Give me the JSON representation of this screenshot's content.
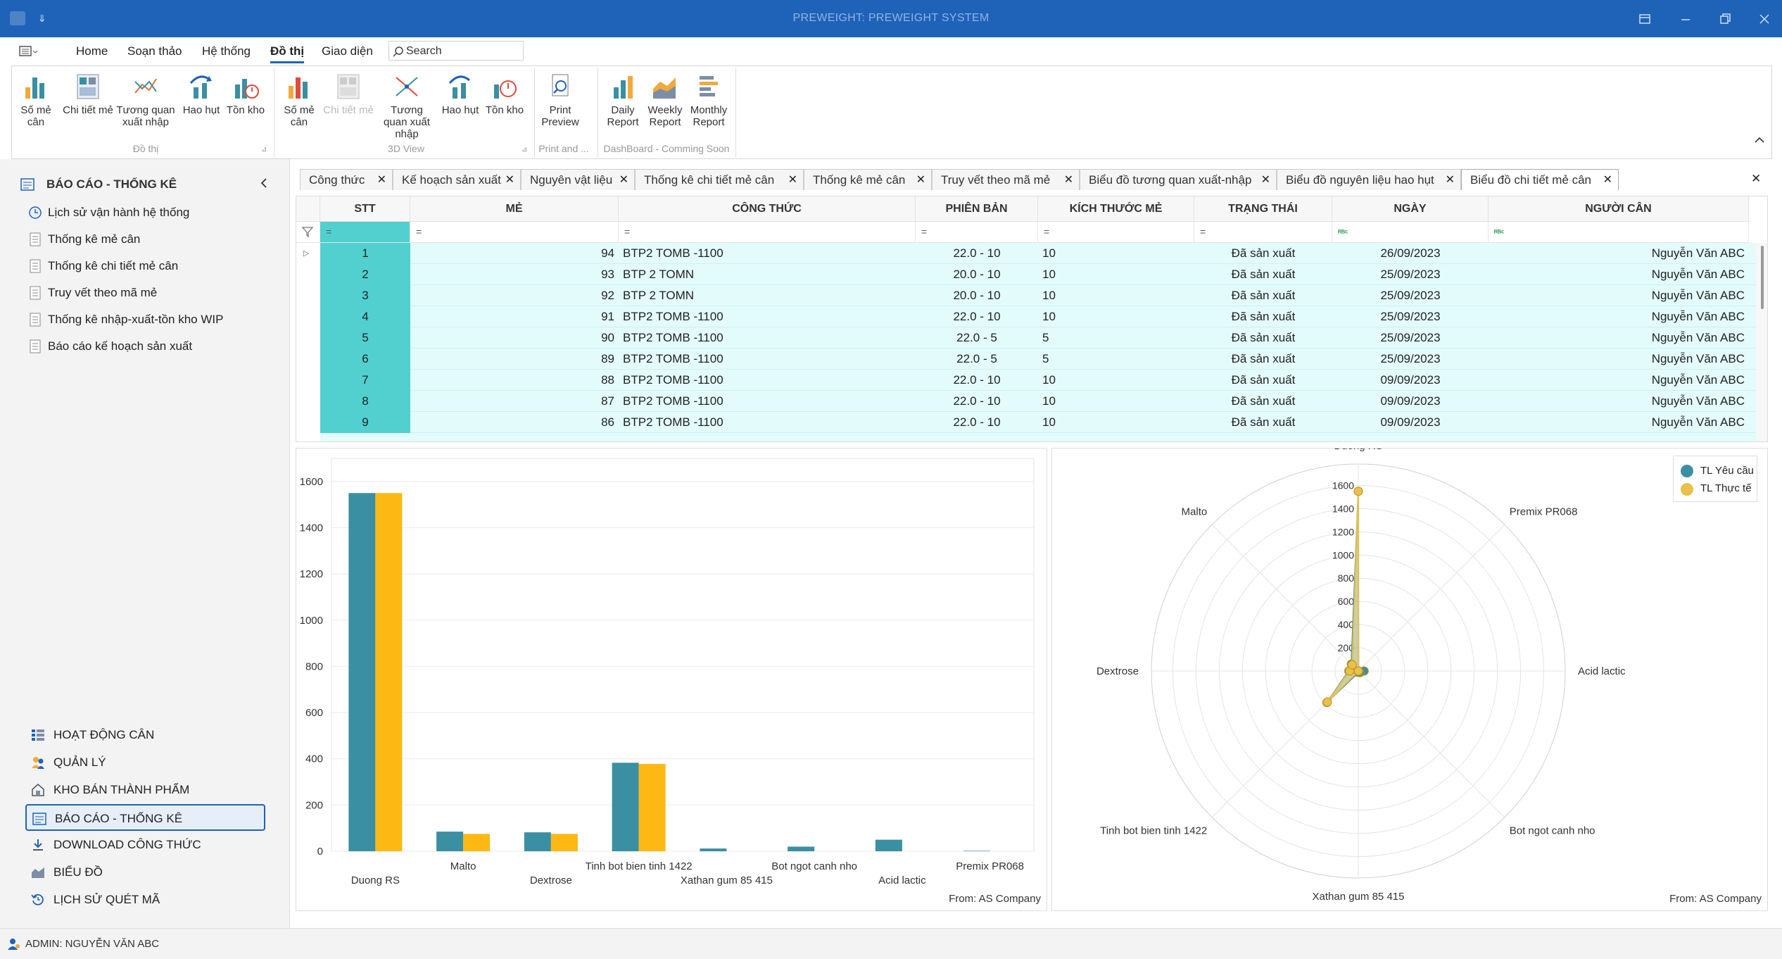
{
  "window": {
    "title": "PREWEIGHT: PREWEIGHT SYSTEM"
  },
  "menu": {
    "items": [
      "Home",
      "Soạn thảo",
      "Hệ thống",
      "Đồ thị",
      "Giao diện"
    ],
    "active": "Đồ thị",
    "search_placeholder": "Search"
  },
  "ribbon": {
    "buttons": [
      "Số mẻ cân",
      "Chi tiết mẻ",
      "Tương quan xuất nhập",
      "Hao hụt",
      "Tồn kho",
      "Số mẻ cân",
      "Chi tiết mẻ",
      "Tương quan xuất nhập",
      "Hao hụt",
      "Tồn kho",
      "Print Preview",
      "Daily Report",
      "Weekly Report",
      "Monthly Report"
    ],
    "groups": [
      "Đồ thị",
      "3D View",
      "Print and ...",
      "DashBoard - Comming Soon"
    ]
  },
  "sidebar": {
    "header": "BÁO CÁO - THỐNG KÊ",
    "items": [
      "Lịch sử vận hành hệ thống",
      "Thống kê mẻ cân",
      "Thống kê chi tiết mẻ cân",
      "Truy vết theo mã mẻ",
      "Thống kê nhập-xuất-tồn kho WIP",
      "Báo cáo kế hoạch sản xuất"
    ],
    "nav": [
      "HOẠT ĐỘNG CÂN",
      "QUẢN LÝ",
      "KHO BÁN THÀNH PHẨM",
      "BÁO CÁO - THỐNG KÊ",
      "DOWNLOAD CÔNG THỨC",
      "BIỂU ĐỒ",
      "LỊCH SỬ QUÉT MÃ"
    ],
    "active_nav": "BÁO CÁO - THỐNG KÊ"
  },
  "tabs": [
    "Công thức",
    "Kế hoạch sản xuất",
    "Nguyên vật liệu",
    "Thống kê chi tiết mẻ cân",
    "Thống kê mẻ cân",
    "Truy vết theo mã mẻ",
    "Biểu đồ tương quan xuất-nhập",
    "Biểu đồ nguyên liệu hao hụt",
    "Biểu đồ chi tiết mẻ cân"
  ],
  "active_tab": "Biểu đồ chi tiết mẻ cân",
  "grid": {
    "columns": [
      "STT",
      "MẺ",
      "CÔNG THỨC",
      "PHIÊN BẢN",
      "KÍCH THƯỚC MẺ",
      "TRẠNG THÁI",
      "NGÀY",
      "NGƯỜI CÂN"
    ],
    "rows": [
      [
        "1",
        "94",
        "BTP2 TOMB -1100",
        "22.0 - 10",
        "10",
        "Đã sản xuất",
        "26/09/2023",
        "Nguyễn Văn ABC"
      ],
      [
        "2",
        "93",
        "BTP 2 TOMN",
        "20.0 - 10",
        "10",
        "Đã sản xuất",
        "25/09/2023",
        "Nguyễn Văn ABC"
      ],
      [
        "3",
        "92",
        "BTP 2 TOMN",
        "20.0 - 10",
        "10",
        "Đã sản xuất",
        "25/09/2023",
        "Nguyễn Văn ABC"
      ],
      [
        "4",
        "91",
        "BTP2 TOMB -1100",
        "22.0 - 10",
        "10",
        "Đã sản xuất",
        "25/09/2023",
        "Nguyễn Văn ABC"
      ],
      [
        "5",
        "90",
        "BTP2 TOMB -1100",
        "22.0 - 5",
        "5",
        "Đã sản xuất",
        "25/09/2023",
        "Nguyễn Văn ABC"
      ],
      [
        "6",
        "89",
        "BTP2 TOMB -1100",
        "22.0 - 5",
        "5",
        "Đã sản xuất",
        "25/09/2023",
        "Nguyễn Văn ABC"
      ],
      [
        "7",
        "88",
        "BTP2 TOMB -1100",
        "22.0 - 10",
        "10",
        "Đã sản xuất",
        "09/09/2023",
        "Nguyễn Văn ABC"
      ],
      [
        "8",
        "87",
        "BTP2 TOMB -1100",
        "22.0 - 10",
        "10",
        "Đã sản xuất",
        "09/09/2023",
        "Nguyễn Văn ABC"
      ],
      [
        "9",
        "86",
        "BTP2 TOMB -1100",
        "22.0 - 10",
        "10",
        "Đã sản xuất",
        "09/09/2023",
        "Nguyễn Văn ABC"
      ]
    ]
  },
  "chart_data": [
    {
      "type": "bar",
      "categories": [
        "Duong RS",
        "Malto",
        "Dextrose",
        "Tinh bot bien tinh 1422",
        "Xathan gum 85 415",
        "Bot ngot canh nho",
        "Acid lactic",
        "Premix PR068"
      ],
      "series": [
        {
          "name": "TL Yêu cầu",
          "color": "#3a8fa3",
          "values": [
            1550,
            85,
            82,
            383,
            12,
            20,
            50,
            2
          ]
        },
        {
          "name": "TL Thực tế",
          "color": "#fdb813",
          "values": [
            1550,
            75,
            75,
            378,
            0,
            0,
            0,
            0
          ]
        }
      ],
      "yticks": [
        0,
        200,
        400,
        600,
        800,
        1000,
        1200,
        1400,
        1600
      ],
      "ylim": [
        0,
        1700
      ],
      "footer": "From: AS Company"
    },
    {
      "type": "radar",
      "categories": [
        "Duong RS",
        "Premix PR068",
        "Acid lactic",
        "Bot ngot canh nho",
        "Xathan gum 85 415",
        "Tinh bot bien tinh 1422",
        "Dextrose",
        "Malto"
      ],
      "series": [
        {
          "name": "TL Yêu cầu",
          "color": "#3a8fa3",
          "values": [
            1550,
            2,
            50,
            20,
            12,
            383,
            82,
            85
          ]
        },
        {
          "name": "TL Thực tế",
          "color": "#e8c04a",
          "values": [
            1550,
            0,
            0,
            0,
            0,
            378,
            75,
            75
          ]
        }
      ],
      "rticks": [
        0,
        200,
        400,
        600,
        800,
        1000,
        1200,
        1400,
        1600
      ],
      "rmax": 1700,
      "legend": [
        "TL Yêu cầu",
        "TL Thực tế"
      ],
      "footer": "From: AS Company"
    }
  ],
  "status": {
    "user": "ADMIN: NGUYỄN VĂN ABC"
  }
}
